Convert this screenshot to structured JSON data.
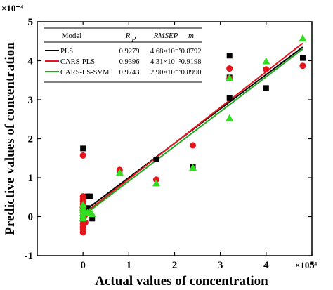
{
  "chart_data": {
    "type": "scatter",
    "xlabel": "Actual values of concentration",
    "ylabel": "Predictive values of concentration",
    "x_exponent": "×10⁻⁴",
    "y_exponent": "×10⁻⁴",
    "xlim": [
      -1,
      5
    ],
    "ylim": [
      -1,
      5
    ],
    "x_ticks": [
      "0",
      "1",
      "2",
      "3",
      "4",
      "5"
    ],
    "y_ticks": [
      "-1",
      "0",
      "1",
      "2",
      "3",
      "4",
      "5"
    ],
    "grid": false,
    "legend_placement": "top-left",
    "legend_table": {
      "headers": [
        "Model",
        "R",
        "p",
        "RMSEP",
        "m"
      ],
      "rows": [
        {
          "model": "PLS",
          "rp": "0.9279",
          "rmsep": "4.68×10⁻⁵",
          "m": "0.8792"
        },
        {
          "model": "CARS-PLS",
          "rp": "0.9396",
          "rmsep": "4.31×10⁻⁵",
          "m": "0.9198"
        },
        {
          "model": "CARS-LS-SVM",
          "rp": "0.9743",
          "rmsep": "2.90×10⁻⁵",
          "m": "0.8990"
        }
      ]
    },
    "series": [
      {
        "name": "PLS",
        "marker": "square",
        "color": "#000000",
        "line_color": "#000000",
        "fit": [
          [
            0,
            0.12
          ],
          [
            4.8,
            4.35
          ]
        ],
        "points": [
          [
            0,
            1.75
          ],
          [
            0.1,
            0.52
          ],
          [
            0.15,
            0.52
          ],
          [
            0.2,
            -0.05
          ],
          [
            0.1,
            0.22
          ],
          [
            0.05,
            0.1
          ],
          [
            0,
            0.0
          ],
          [
            0.8,
            1.15
          ],
          [
            1.6,
            1.47
          ],
          [
            2.4,
            1.28
          ],
          [
            3.2,
            4.13
          ],
          [
            3.2,
            3.04
          ],
          [
            3.2,
            3.57
          ],
          [
            4.0,
            3.3
          ],
          [
            4.8,
            4.07
          ]
        ]
      },
      {
        "name": "CARS-PLS",
        "marker": "circle",
        "color": "#e8141b",
        "line_color": "#e8141b",
        "fit": [
          [
            0,
            0.05
          ],
          [
            4.8,
            4.45
          ]
        ],
        "points": [
          [
            0,
            1.57
          ],
          [
            0,
            0.52
          ],
          [
            0,
            0.45
          ],
          [
            0,
            0.4
          ],
          [
            0,
            0.32
          ],
          [
            0,
            0.22
          ],
          [
            0,
            0.12
          ],
          [
            0.02,
            0.0
          ],
          [
            0,
            -0.1
          ],
          [
            0,
            -0.18
          ],
          [
            0,
            -0.26
          ],
          [
            0,
            -0.32
          ],
          [
            0,
            -0.4
          ],
          [
            0.05,
            0.05
          ],
          [
            0.05,
            -0.15
          ],
          [
            0.8,
            1.2
          ],
          [
            1.6,
            0.95
          ],
          [
            2.4,
            1.83
          ],
          [
            3.2,
            3.8
          ],
          [
            3.2,
            3.55
          ],
          [
            4.0,
            3.78
          ],
          [
            4.8,
            3.87
          ]
        ]
      },
      {
        "name": "CARS-LS-SVM",
        "marker": "triangle",
        "color": "#33dd22",
        "line_color": "#22aa22",
        "fit": [
          [
            0,
            0.02
          ],
          [
            4.8,
            4.3
          ]
        ],
        "points": [
          [
            0,
            0.3
          ],
          [
            0,
            0.22
          ],
          [
            0,
            0.15
          ],
          [
            0,
            0.08
          ],
          [
            0,
            0.02
          ],
          [
            0,
            -0.05
          ],
          [
            0.05,
            0.12
          ],
          [
            0.1,
            0.1
          ],
          [
            0.15,
            0.12
          ],
          [
            0.2,
            0.06
          ],
          [
            0.8,
            1.12
          ],
          [
            1.6,
            0.85
          ],
          [
            2.4,
            1.25
          ],
          [
            3.2,
            3.55
          ],
          [
            3.2,
            2.52
          ],
          [
            4.0,
            3.98
          ],
          [
            4.8,
            4.57
          ]
        ]
      }
    ]
  }
}
